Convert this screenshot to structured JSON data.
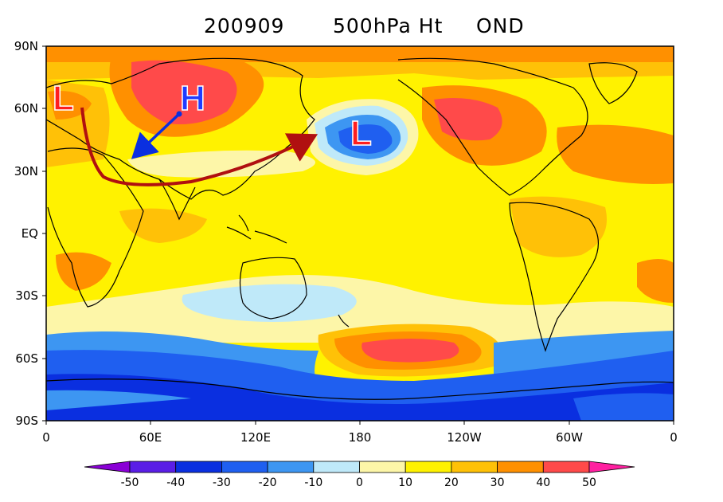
{
  "title": {
    "date": "200909",
    "field": "500hPa Ht",
    "season": "OND"
  },
  "y_ticks": [
    "90N",
    "60N",
    "30N",
    "EQ",
    "30S",
    "60S",
    "90S"
  ],
  "x_ticks": [
    "0",
    "60E",
    "120E",
    "180",
    "120W",
    "60W",
    "0"
  ],
  "colorbar": {
    "ticks": [
      "-50",
      "-40",
      "-30",
      "-20",
      "-10",
      "0",
      "10",
      "20",
      "30",
      "40",
      "50"
    ],
    "colors": [
      "#8a00d6",
      "#5a1ee6",
      "#0a2fe0",
      "#1f5ff0",
      "#3d96f2",
      "#bfe9f9",
      "#fdf6a8",
      "#fff200",
      "#ffc107",
      "#ff9000",
      "#ff4a4a",
      "#ff20a0"
    ]
  },
  "annotations": {
    "low_west": "L",
    "high_siberia": "H",
    "low_pacific": "L",
    "low_color": "#ff1e1e",
    "high_color": "#1f3cff",
    "arrow_wavetrain_color": "#b01010",
    "arrow_high_color": "#0a2fe0"
  }
}
